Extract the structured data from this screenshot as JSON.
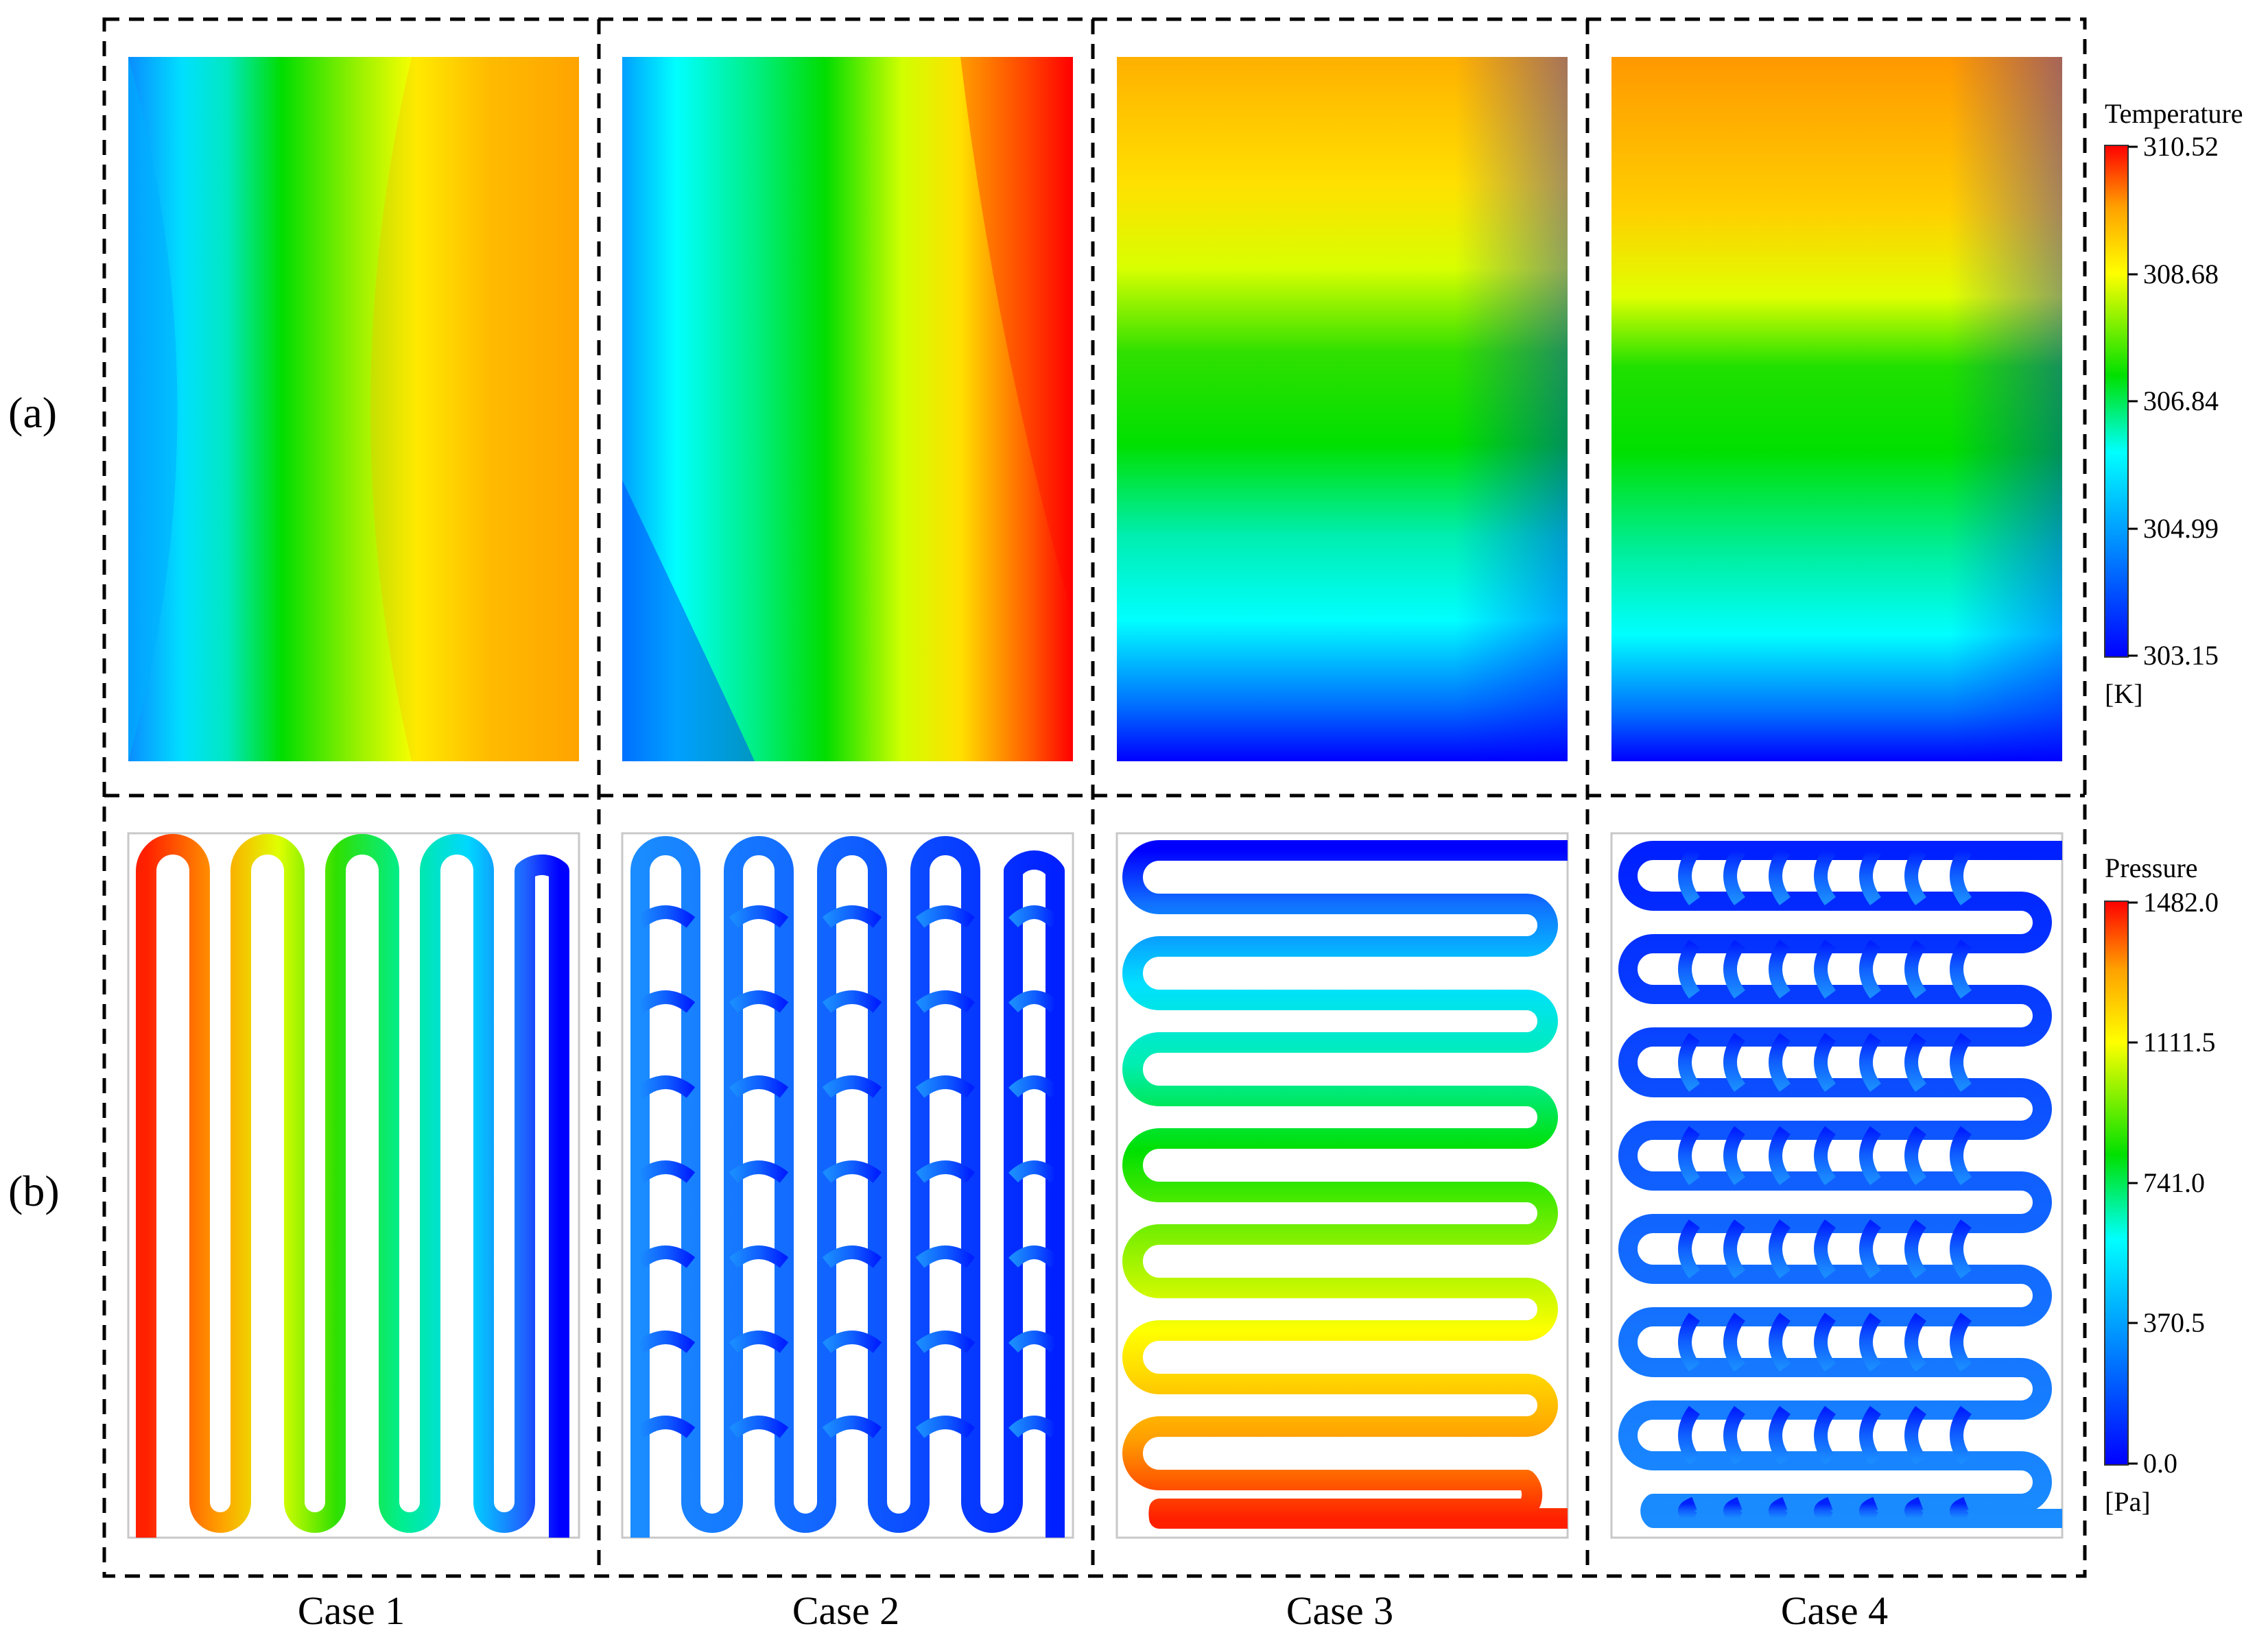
{
  "row_labels": {
    "a": "(a)",
    "b": "(b)"
  },
  "cases": [
    "Case 1",
    "Case 2",
    "Case 3",
    "Case 4"
  ],
  "temperature_legend": {
    "title": "Temperature",
    "unit": "[K]",
    "ticks": [
      "310.52",
      "308.68",
      "306.84",
      "304.99",
      "303.15"
    ],
    "min": 303.15,
    "max": 310.52
  },
  "pressure_legend": {
    "title": "Pressure",
    "unit": "[Pa]",
    "ticks": [
      "1482.0",
      "1111.5",
      "741.0",
      "370.5",
      "0.0"
    ],
    "min": 0.0,
    "max": 1482.0
  },
  "colormap": [
    "#0000ff",
    "#00e5ff",
    "#00e000",
    "#ffff00",
    "#ff0000"
  ]
}
